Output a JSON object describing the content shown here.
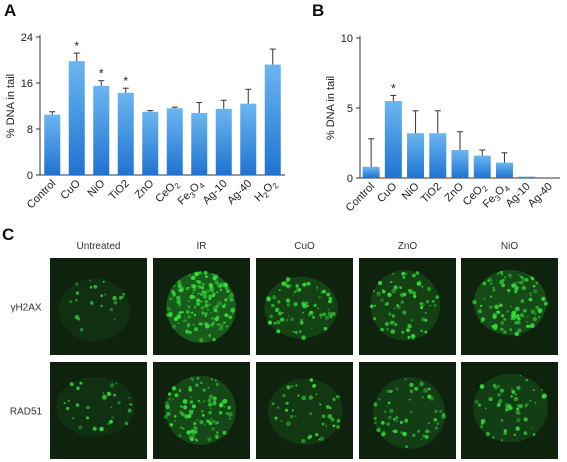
{
  "panels": {
    "a": "A",
    "b": "B",
    "c": "C"
  },
  "colors": {
    "bar_top": "#6bb6f0",
    "bar_bottom": "#1f73d2",
    "axis": "#333333",
    "cell": "#35e23a",
    "cell_bg": "#0e220e"
  },
  "chart_data": [
    {
      "type": "bar",
      "panel": "A",
      "ylabel": "% DNA in tail",
      "ylim": [
        0,
        24
      ],
      "yticks": [
        0,
        8,
        16,
        24
      ],
      "categories": [
        "Control",
        "CuO",
        "NiO",
        "TiO2",
        "ZnO",
        "CeO2",
        "Fe3O4",
        "Ag-10",
        "Ag-40",
        "H2O2"
      ],
      "tick_labels": [
        {
          "main": "Control",
          "sub": ""
        },
        {
          "main": "CuO",
          "sub": ""
        },
        {
          "main": "NiO",
          "sub": ""
        },
        {
          "main": "TiO2",
          "sub": ""
        },
        {
          "main": "ZnO",
          "sub": ""
        },
        {
          "main": "CeO",
          "sub": "2"
        },
        {
          "main": "Fe",
          "sub": "3",
          "main2": "O",
          "sub2": "4"
        },
        {
          "main": "Ag-10",
          "sub": ""
        },
        {
          "main": "Ag-40",
          "sub": ""
        },
        {
          "main": "H",
          "sub": "2",
          "main2": "O",
          "sub2": "2"
        }
      ],
      "values": [
        10.5,
        19.8,
        15.5,
        14.3,
        11.0,
        11.6,
        10.8,
        11.5,
        12.4,
        19.2
      ],
      "errors": [
        0.5,
        1.4,
        0.9,
        0.8,
        0.2,
        0.2,
        1.8,
        1.5,
        2.5,
        2.7
      ],
      "significant": [
        false,
        true,
        true,
        true,
        false,
        false,
        false,
        false,
        false,
        false
      ],
      "marker": "*"
    },
    {
      "type": "bar",
      "panel": "B",
      "ylabel": "% DNA in tail",
      "ylim": [
        0,
        10
      ],
      "yticks": [
        0,
        5,
        10
      ],
      "categories": [
        "Control",
        "CuO",
        "NiO",
        "TiO2",
        "ZnO",
        "CeO2",
        "Fe3O4",
        "Ag-10",
        "Ag-40"
      ],
      "tick_labels": [
        {
          "main": "Control",
          "sub": ""
        },
        {
          "main": "CuO",
          "sub": ""
        },
        {
          "main": "NiO",
          "sub": ""
        },
        {
          "main": "TiO2",
          "sub": ""
        },
        {
          "main": "ZnO",
          "sub": ""
        },
        {
          "main": "CeO",
          "sub": "2"
        },
        {
          "main": "Fe",
          "sub": "3",
          "main2": "O",
          "sub2": "4"
        },
        {
          "main": "Ag-10",
          "sub": ""
        },
        {
          "main": "Ag-40",
          "sub": ""
        }
      ],
      "values": [
        0.8,
        5.5,
        3.2,
        3.2,
        2.0,
        1.6,
        1.1,
        0.1,
        0.0
      ],
      "errors": [
        2.0,
        0.4,
        1.6,
        1.6,
        1.3,
        0.4,
        0.7,
        0.0,
        0.0
      ],
      "significant": [
        false,
        true,
        false,
        false,
        false,
        false,
        false,
        false,
        false
      ],
      "marker": "*"
    }
  ],
  "micrographs": {
    "columns": [
      "Untreated",
      "IR",
      "CuO",
      "ZnO",
      "NiO"
    ],
    "rows": [
      {
        "label": "γH2AX",
        "foci_density": [
          0.05,
          0.95,
          0.45,
          0.4,
          0.6
        ]
      },
      {
        "label": "RAD51",
        "foci_density": [
          0.1,
          0.55,
          0.2,
          0.3,
          0.3
        ]
      }
    ]
  }
}
